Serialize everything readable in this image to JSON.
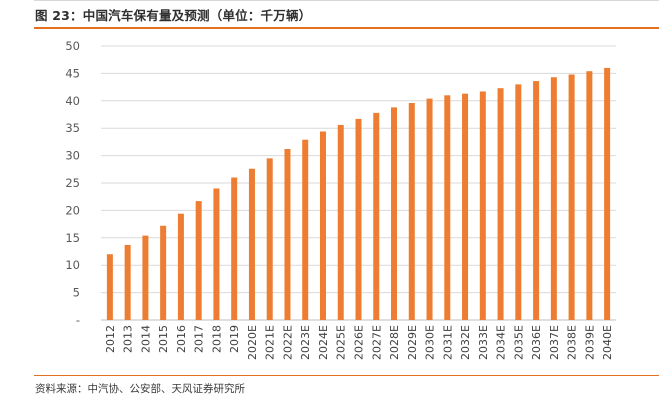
{
  "figure": {
    "title": "图 23：中国汽车保有量及预测（单位：千万辆）",
    "source": "资料来源：中汽协、公安部、天风证券研究所",
    "accent_color": "#e2701f"
  },
  "chart_data": {
    "type": "bar",
    "title": "中国汽车保有量及预测（单位：千万辆）",
    "xlabel": "",
    "ylabel": "",
    "ylim": [
      0,
      50
    ],
    "yticks": [
      0,
      5,
      10,
      15,
      20,
      25,
      30,
      35,
      40,
      45,
      50
    ],
    "ytick_labels": [
      "-",
      "5",
      "10",
      "15",
      "20",
      "25",
      "30",
      "35",
      "40",
      "45",
      "50"
    ],
    "grid": true,
    "legend": "none",
    "bar_color": "#ed7d31",
    "categories": [
      "2012",
      "2013",
      "2014",
      "2015",
      "2016",
      "2017",
      "2018",
      "2019",
      "2020E",
      "2021E",
      "2022E",
      "2023E",
      "2024E",
      "2025E",
      "2026E",
      "2027E",
      "2028E",
      "2029E",
      "2030E",
      "2031E",
      "2032E",
      "2033E",
      "2034E",
      "2035E",
      "2036E",
      "2037E",
      "2038E",
      "2039E",
      "2040E"
    ],
    "series": [
      {
        "name": "汽车保有量",
        "values": [
          12.0,
          13.7,
          15.4,
          17.2,
          19.4,
          21.7,
          24.0,
          26.0,
          27.6,
          29.5,
          31.2,
          32.9,
          34.4,
          35.6,
          36.7,
          37.8,
          38.8,
          39.6,
          40.4,
          41.0,
          41.3,
          41.7,
          42.3,
          43.0,
          43.6,
          44.3,
          44.8,
          45.4,
          46.0
        ]
      }
    ]
  }
}
